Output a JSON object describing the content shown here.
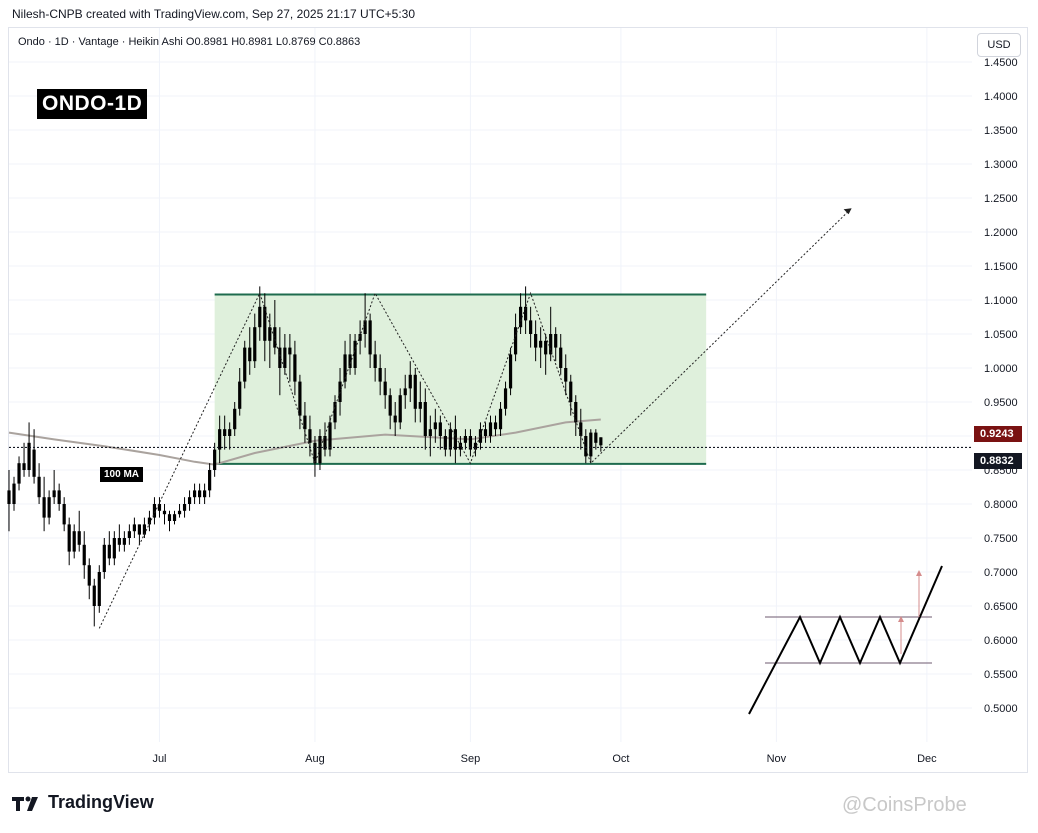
{
  "header": {
    "credit": "Nilesh-CNPB created with TradingView.com, Sep 27, 2025 21:17 UTC+5:30",
    "symbol_line": "Ondo · 1D · Vantage · Heikin Ashi  O0.8981  H0.8981  L0.8769  C0.8863",
    "currency": "USD"
  },
  "badges": {
    "ticker": "ONDO-1D",
    "ma_label": "100 MA",
    "ma_price": "0.9243",
    "last_price": "0.8832"
  },
  "footer": {
    "brand": "TradingView",
    "watermark": "@CoinsProbe"
  },
  "colors": {
    "candle": "#000000",
    "range_fill": "#dff0dc",
    "range_border": "#1e6b4e",
    "ma_line": "#aaa39e",
    "grid": "#f0f3fa",
    "price_tag_ma": "#7a1212",
    "price_tag_last": "#131722"
  },
  "chart_data": {
    "type": "candlestick",
    "style": "Heikin Ashi",
    "interval": "1D",
    "y_ticks": [
      1.45,
      1.4,
      1.35,
      1.3,
      1.25,
      1.2,
      1.15,
      1.1,
      1.05,
      1.0,
      0.95,
      0.9,
      0.85,
      0.8,
      0.75,
      0.7,
      0.65,
      0.6,
      0.55,
      0.5
    ],
    "x_ticks": [
      "Jul",
      "Aug",
      "Sep",
      "Oct",
      "Nov",
      "Dec"
    ],
    "ylim": [
      0.45,
      1.5
    ],
    "x_range": [
      "2025-06-01",
      "2025-12-10"
    ],
    "grid": true,
    "candles": [
      {
        "date": "2025-06-01",
        "o": 0.82,
        "h": 0.85,
        "l": 0.76,
        "c": 0.8
      },
      {
        "date": "2025-06-02",
        "o": 0.8,
        "h": 0.84,
        "l": 0.79,
        "c": 0.83
      },
      {
        "date": "2025-06-03",
        "o": 0.83,
        "h": 0.87,
        "l": 0.82,
        "c": 0.86
      },
      {
        "date": "2025-06-04",
        "o": 0.86,
        "h": 0.89,
        "l": 0.84,
        "c": 0.85
      },
      {
        "date": "2025-06-05",
        "o": 0.85,
        "h": 0.92,
        "l": 0.84,
        "c": 0.89
      },
      {
        "date": "2025-06-06",
        "o": 0.88,
        "h": 0.91,
        "l": 0.83,
        "c": 0.84
      },
      {
        "date": "2025-06-07",
        "o": 0.84,
        "h": 0.86,
        "l": 0.8,
        "c": 0.81
      },
      {
        "date": "2025-06-08",
        "o": 0.81,
        "h": 0.84,
        "l": 0.76,
        "c": 0.78
      },
      {
        "date": "2025-06-09",
        "o": 0.78,
        "h": 0.82,
        "l": 0.77,
        "c": 0.81
      },
      {
        "date": "2025-06-10",
        "o": 0.81,
        "h": 0.85,
        "l": 0.8,
        "c": 0.82
      },
      {
        "date": "2025-06-11",
        "o": 0.82,
        "h": 0.83,
        "l": 0.79,
        "c": 0.8
      },
      {
        "date": "2025-06-12",
        "o": 0.8,
        "h": 0.81,
        "l": 0.76,
        "c": 0.77
      },
      {
        "date": "2025-06-13",
        "o": 0.77,
        "h": 0.78,
        "l": 0.71,
        "c": 0.73
      },
      {
        "date": "2025-06-14",
        "o": 0.73,
        "h": 0.77,
        "l": 0.72,
        "c": 0.76
      },
      {
        "date": "2025-06-15",
        "o": 0.76,
        "h": 0.79,
        "l": 0.73,
        "c": 0.74
      },
      {
        "date": "2025-06-16",
        "o": 0.74,
        "h": 0.76,
        "l": 0.69,
        "c": 0.71
      },
      {
        "date": "2025-06-17",
        "o": 0.71,
        "h": 0.72,
        "l": 0.66,
        "c": 0.68
      },
      {
        "date": "2025-06-18",
        "o": 0.68,
        "h": 0.69,
        "l": 0.62,
        "c": 0.65
      },
      {
        "date": "2025-06-19",
        "o": 0.65,
        "h": 0.71,
        "l": 0.64,
        "c": 0.7
      },
      {
        "date": "2025-06-20",
        "o": 0.7,
        "h": 0.75,
        "l": 0.69,
        "c": 0.74
      },
      {
        "date": "2025-06-21",
        "o": 0.74,
        "h": 0.76,
        "l": 0.71,
        "c": 0.72
      },
      {
        "date": "2025-06-22",
        "o": 0.72,
        "h": 0.76,
        "l": 0.71,
        "c": 0.75
      },
      {
        "date": "2025-06-23",
        "o": 0.75,
        "h": 0.77,
        "l": 0.73,
        "c": 0.74
      },
      {
        "date": "2025-06-24",
        "o": 0.74,
        "h": 0.76,
        "l": 0.73,
        "c": 0.75
      },
      {
        "date": "2025-06-25",
        "o": 0.75,
        "h": 0.77,
        "l": 0.74,
        "c": 0.76
      },
      {
        "date": "2025-06-26",
        "o": 0.76,
        "h": 0.78,
        "l": 0.75,
        "c": 0.77
      },
      {
        "date": "2025-06-27",
        "o": 0.77,
        "h": 0.77,
        "l": 0.74,
        "c": 0.755
      },
      {
        "date": "2025-06-28",
        "o": 0.755,
        "h": 0.78,
        "l": 0.75,
        "c": 0.77
      },
      {
        "date": "2025-06-29",
        "o": 0.77,
        "h": 0.79,
        "l": 0.76,
        "c": 0.78
      },
      {
        "date": "2025-06-30",
        "o": 0.78,
        "h": 0.81,
        "l": 0.77,
        "c": 0.8
      },
      {
        "date": "2025-07-01",
        "o": 0.8,
        "h": 0.81,
        "l": 0.78,
        "c": 0.79
      },
      {
        "date": "2025-07-02",
        "o": 0.79,
        "h": 0.8,
        "l": 0.77,
        "c": 0.785
      },
      {
        "date": "2025-07-03",
        "o": 0.785,
        "h": 0.79,
        "l": 0.76,
        "c": 0.775
      },
      {
        "date": "2025-07-04",
        "o": 0.775,
        "h": 0.79,
        "l": 0.77,
        "c": 0.785
      },
      {
        "date": "2025-07-05",
        "o": 0.785,
        "h": 0.8,
        "l": 0.78,
        "c": 0.79
      },
      {
        "date": "2025-07-06",
        "o": 0.79,
        "h": 0.81,
        "l": 0.78,
        "c": 0.8
      },
      {
        "date": "2025-07-07",
        "o": 0.8,
        "h": 0.82,
        "l": 0.79,
        "c": 0.81
      },
      {
        "date": "2025-07-08",
        "o": 0.81,
        "h": 0.83,
        "l": 0.8,
        "c": 0.82
      },
      {
        "date": "2025-07-09",
        "o": 0.82,
        "h": 0.83,
        "l": 0.8,
        "c": 0.81
      },
      {
        "date": "2025-07-10",
        "o": 0.81,
        "h": 0.83,
        "l": 0.8,
        "c": 0.82
      },
      {
        "date": "2025-07-11",
        "o": 0.82,
        "h": 0.86,
        "l": 0.81,
        "c": 0.85
      },
      {
        "date": "2025-07-12",
        "o": 0.85,
        "h": 0.89,
        "l": 0.84,
        "c": 0.88
      },
      {
        "date": "2025-07-13",
        "o": 0.88,
        "h": 0.93,
        "l": 0.86,
        "c": 0.91
      },
      {
        "date": "2025-07-14",
        "o": 0.91,
        "h": 0.93,
        "l": 0.88,
        "c": 0.9
      },
      {
        "date": "2025-07-15",
        "o": 0.9,
        "h": 0.92,
        "l": 0.88,
        "c": 0.91
      },
      {
        "date": "2025-07-16",
        "o": 0.91,
        "h": 0.95,
        "l": 0.9,
        "c": 0.94
      },
      {
        "date": "2025-07-17",
        "o": 0.94,
        "h": 1.0,
        "l": 0.93,
        "c": 0.98
      },
      {
        "date": "2025-07-18",
        "o": 0.98,
        "h": 1.04,
        "l": 0.97,
        "c": 1.03
      },
      {
        "date": "2025-07-19",
        "o": 1.03,
        "h": 1.06,
        "l": 0.99,
        "c": 1.01
      },
      {
        "date": "2025-07-20",
        "o": 1.01,
        "h": 1.08,
        "l": 1.0,
        "c": 1.06
      },
      {
        "date": "2025-07-21",
        "o": 1.06,
        "h": 1.12,
        "l": 1.04,
        "c": 1.09
      },
      {
        "date": "2025-07-22",
        "o": 1.09,
        "h": 1.11,
        "l": 1.01,
        "c": 1.04
      },
      {
        "date": "2025-07-23",
        "o": 1.04,
        "h": 1.08,
        "l": 1.0,
        "c": 1.06
      },
      {
        "date": "2025-07-24",
        "o": 1.06,
        "h": 1.1,
        "l": 1.02,
        "c": 1.03
      },
      {
        "date": "2025-07-25",
        "o": 1.03,
        "h": 1.06,
        "l": 0.96,
        "c": 1.0
      },
      {
        "date": "2025-07-26",
        "o": 1.0,
        "h": 1.05,
        "l": 0.99,
        "c": 1.03
      },
      {
        "date": "2025-07-27",
        "o": 1.03,
        "h": 1.05,
        "l": 0.98,
        "c": 1.02
      },
      {
        "date": "2025-07-28",
        "o": 1.02,
        "h": 1.04,
        "l": 0.96,
        "c": 0.98
      },
      {
        "date": "2025-07-29",
        "o": 0.98,
        "h": 0.99,
        "l": 0.91,
        "c": 0.93
      },
      {
        "date": "2025-07-30",
        "o": 0.93,
        "h": 0.95,
        "l": 0.89,
        "c": 0.91
      },
      {
        "date": "2025-07-31",
        "o": 0.91,
        "h": 0.93,
        "l": 0.87,
        "c": 0.89
      },
      {
        "date": "2025-08-01",
        "o": 0.89,
        "h": 0.9,
        "l": 0.84,
        "c": 0.86
      },
      {
        "date": "2025-08-02",
        "o": 0.86,
        "h": 0.91,
        "l": 0.85,
        "c": 0.9
      },
      {
        "date": "2025-08-03",
        "o": 0.9,
        "h": 0.92,
        "l": 0.87,
        "c": 0.88
      },
      {
        "date": "2025-08-04",
        "o": 0.88,
        "h": 0.93,
        "l": 0.87,
        "c": 0.92
      },
      {
        "date": "2025-08-05",
        "o": 0.92,
        "h": 0.96,
        "l": 0.91,
        "c": 0.95
      },
      {
        "date": "2025-08-06",
        "o": 0.95,
        "h": 1.0,
        "l": 0.93,
        "c": 0.98
      },
      {
        "date": "2025-08-07",
        "o": 0.98,
        "h": 1.04,
        "l": 0.97,
        "c": 1.02
      },
      {
        "date": "2025-08-08",
        "o": 1.02,
        "h": 1.05,
        "l": 0.99,
        "c": 1.0
      },
      {
        "date": "2025-08-09",
        "o": 1.0,
        "h": 1.05,
        "l": 0.99,
        "c": 1.04
      },
      {
        "date": "2025-08-10",
        "o": 1.04,
        "h": 1.07,
        "l": 1.02,
        "c": 1.05
      },
      {
        "date": "2025-08-11",
        "o": 1.05,
        "h": 1.11,
        "l": 1.03,
        "c": 1.07
      },
      {
        "date": "2025-08-12",
        "o": 1.07,
        "h": 1.08,
        "l": 1.0,
        "c": 1.02
      },
      {
        "date": "2025-08-13",
        "o": 1.02,
        "h": 1.04,
        "l": 0.98,
        "c": 1.0
      },
      {
        "date": "2025-08-14",
        "o": 1.0,
        "h": 1.02,
        "l": 0.96,
        "c": 0.98
      },
      {
        "date": "2025-08-15",
        "o": 0.98,
        "h": 1.0,
        "l": 0.94,
        "c": 0.96
      },
      {
        "date": "2025-08-16",
        "o": 0.96,
        "h": 0.97,
        "l": 0.91,
        "c": 0.93
      },
      {
        "date": "2025-08-17",
        "o": 0.93,
        "h": 0.95,
        "l": 0.9,
        "c": 0.92
      },
      {
        "date": "2025-08-18",
        "o": 0.92,
        "h": 0.97,
        "l": 0.91,
        "c": 0.96
      },
      {
        "date": "2025-08-19",
        "o": 0.96,
        "h": 0.99,
        "l": 0.94,
        "c": 0.97
      },
      {
        "date": "2025-08-20",
        "o": 0.97,
        "h": 1.01,
        "l": 0.95,
        "c": 0.99
      },
      {
        "date": "2025-08-21",
        "o": 0.99,
        "h": 1.0,
        "l": 0.92,
        "c": 0.94
      },
      {
        "date": "2025-08-22",
        "o": 0.94,
        "h": 0.98,
        "l": 0.92,
        "c": 0.95
      },
      {
        "date": "2025-08-23",
        "o": 0.95,
        "h": 0.97,
        "l": 0.88,
        "c": 0.9
      },
      {
        "date": "2025-08-24",
        "o": 0.9,
        "h": 0.93,
        "l": 0.87,
        "c": 0.91
      },
      {
        "date": "2025-08-25",
        "o": 0.91,
        "h": 0.94,
        "l": 0.89,
        "c": 0.92
      },
      {
        "date": "2025-08-26",
        "o": 0.92,
        "h": 0.93,
        "l": 0.88,
        "c": 0.9
      },
      {
        "date": "2025-08-27",
        "o": 0.9,
        "h": 0.91,
        "l": 0.87,
        "c": 0.88
      },
      {
        "date": "2025-08-28",
        "o": 0.88,
        "h": 0.92,
        "l": 0.87,
        "c": 0.91
      },
      {
        "date": "2025-08-29",
        "o": 0.91,
        "h": 0.93,
        "l": 0.86,
        "c": 0.88
      },
      {
        "date": "2025-08-30",
        "o": 0.88,
        "h": 0.9,
        "l": 0.87,
        "c": 0.89
      },
      {
        "date": "2025-08-31",
        "o": 0.89,
        "h": 0.91,
        "l": 0.88,
        "c": 0.9
      },
      {
        "date": "2025-09-01",
        "o": 0.9,
        "h": 0.91,
        "l": 0.87,
        "c": 0.88
      },
      {
        "date": "2025-09-02",
        "o": 0.88,
        "h": 0.9,
        "l": 0.87,
        "c": 0.89
      },
      {
        "date": "2025-09-03",
        "o": 0.89,
        "h": 0.92,
        "l": 0.88,
        "c": 0.91
      },
      {
        "date": "2025-09-04",
        "o": 0.91,
        "h": 0.92,
        "l": 0.89,
        "c": 0.9
      },
      {
        "date": "2025-09-05",
        "o": 0.9,
        "h": 0.93,
        "l": 0.89,
        "c": 0.92
      },
      {
        "date": "2025-09-06",
        "o": 0.92,
        "h": 0.93,
        "l": 0.9,
        "c": 0.91
      },
      {
        "date": "2025-09-07",
        "o": 0.91,
        "h": 0.95,
        "l": 0.9,
        "c": 0.94
      },
      {
        "date": "2025-09-08",
        "o": 0.94,
        "h": 0.98,
        "l": 0.93,
        "c": 0.97
      },
      {
        "date": "2025-09-09",
        "o": 0.97,
        "h": 1.03,
        "l": 0.96,
        "c": 1.02
      },
      {
        "date": "2025-09-10",
        "o": 1.02,
        "h": 1.08,
        "l": 1.01,
        "c": 1.06
      },
      {
        "date": "2025-09-11",
        "o": 1.06,
        "h": 1.11,
        "l": 1.05,
        "c": 1.09
      },
      {
        "date": "2025-09-12",
        "o": 1.09,
        "h": 1.12,
        "l": 1.05,
        "c": 1.07
      },
      {
        "date": "2025-09-13",
        "o": 1.07,
        "h": 1.09,
        "l": 1.03,
        "c": 1.05
      },
      {
        "date": "2025-09-14",
        "o": 1.05,
        "h": 1.07,
        "l": 1.01,
        "c": 1.03
      },
      {
        "date": "2025-09-15",
        "o": 1.03,
        "h": 1.06,
        "l": 1.0,
        "c": 1.04
      },
      {
        "date": "2025-09-16",
        "o": 1.04,
        "h": 1.05,
        "l": 0.99,
        "c": 1.02
      },
      {
        "date": "2025-09-17",
        "o": 1.02,
        "h": 1.09,
        "l": 1.01,
        "c": 1.05
      },
      {
        "date": "2025-09-18",
        "o": 1.05,
        "h": 1.06,
        "l": 1.01,
        "c": 1.03
      },
      {
        "date": "2025-09-19",
        "o": 1.03,
        "h": 1.05,
        "l": 0.99,
        "c": 1.0
      },
      {
        "date": "2025-09-20",
        "o": 1.0,
        "h": 1.02,
        "l": 0.96,
        "c": 0.98
      },
      {
        "date": "2025-09-21",
        "o": 0.98,
        "h": 0.99,
        "l": 0.93,
        "c": 0.95
      },
      {
        "date": "2025-09-22",
        "o": 0.95,
        "h": 0.96,
        "l": 0.9,
        "c": 0.92
      },
      {
        "date": "2025-09-23",
        "o": 0.92,
        "h": 0.94,
        "l": 0.88,
        "c": 0.9
      },
      {
        "date": "2025-09-24",
        "o": 0.9,
        "h": 0.91,
        "l": 0.86,
        "c": 0.87
      },
      {
        "date": "2025-09-25",
        "o": 0.87,
        "h": 0.91,
        "l": 0.86,
        "c": 0.905
      },
      {
        "date": "2025-09-26",
        "o": 0.905,
        "h": 0.91,
        "l": 0.88,
        "c": 0.89
      },
      {
        "date": "2025-09-27",
        "o": 0.8981,
        "h": 0.8981,
        "l": 0.8769,
        "c": 0.8863
      }
    ],
    "moving_average_100": [
      {
        "date": "2025-06-01",
        "v": 0.905
      },
      {
        "date": "2025-06-10",
        "v": 0.895
      },
      {
        "date": "2025-06-20",
        "v": 0.885
      },
      {
        "date": "2025-07-01",
        "v": 0.872
      },
      {
        "date": "2025-07-08",
        "v": 0.862
      },
      {
        "date": "2025-07-12",
        "v": 0.858
      },
      {
        "date": "2025-07-20",
        "v": 0.875
      },
      {
        "date": "2025-08-01",
        "v": 0.893
      },
      {
        "date": "2025-08-15",
        "v": 0.902
      },
      {
        "date": "2025-09-01",
        "v": 0.895
      },
      {
        "date": "2025-09-10",
        "v": 0.905
      },
      {
        "date": "2025-09-20",
        "v": 0.92
      },
      {
        "date": "2025-09-27",
        "v": 0.9243
      }
    ],
    "range_zone": {
      "top": 1.108,
      "bottom": 0.859,
      "start": "2025-07-12",
      "end": "2025-10-18"
    },
    "zigzag_path": [
      {
        "date": "2025-06-19",
        "price": 0.617
      },
      {
        "date": "2025-07-21",
        "price": 1.11
      },
      {
        "date": "2025-08-01",
        "price": 0.86
      },
      {
        "date": "2025-08-13",
        "price": 1.11
      },
      {
        "date": "2025-09-01",
        "price": 0.86
      },
      {
        "date": "2025-09-13",
        "price": 1.11
      },
      {
        "date": "2025-09-25",
        "price": 0.86
      },
      {
        "date": "2025-11-16",
        "price": 1.235
      }
    ],
    "current_price": 0.8832,
    "ma_price": 0.9243
  }
}
